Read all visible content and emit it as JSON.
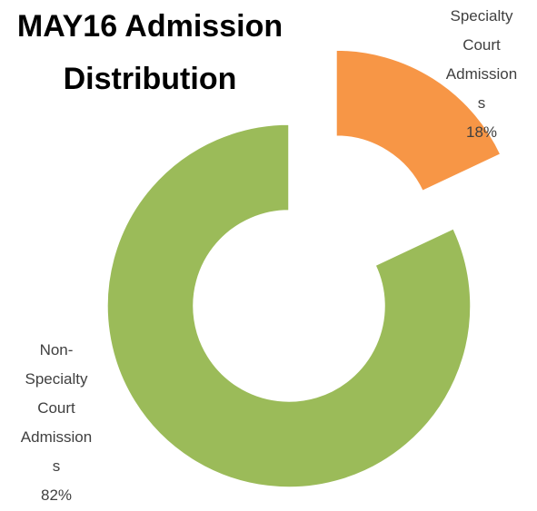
{
  "chart_data": {
    "type": "donut",
    "title": "MAY16 Admission Distribution",
    "categories": [
      "Specialty Court Admissions",
      "Non-Specialty Court Admissions"
    ],
    "values": [
      18,
      82
    ],
    "value_labels": [
      "18%",
      "82%"
    ],
    "colors": [
      "#f79646",
      "#9bbb59"
    ]
  }
}
